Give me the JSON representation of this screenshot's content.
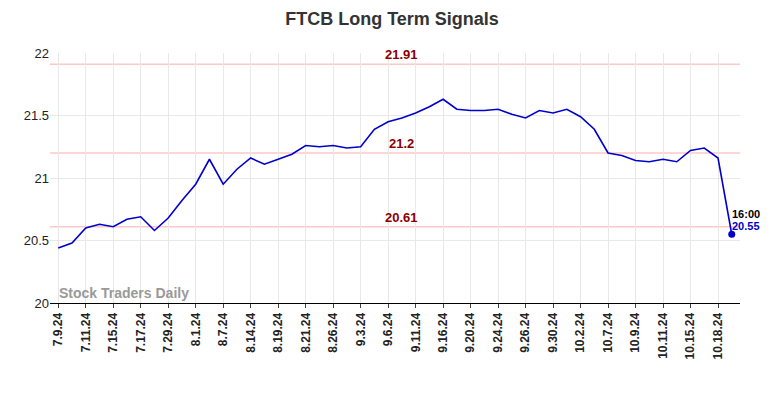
{
  "chart_data": {
    "type": "line",
    "title": "FTCB Long Term Signals",
    "categories": [
      "7.9.24",
      null,
      "7.11.24",
      null,
      "7.15.24",
      null,
      "7.17.24",
      null,
      "7.29.24",
      null,
      "8.1.24",
      null,
      "8.7.24",
      null,
      "8.14.24",
      null,
      "8.19.24",
      null,
      "8.21.24",
      null,
      "8.26.24",
      null,
      "9.3.24",
      null,
      "9.6.24",
      null,
      "9.11.24",
      null,
      "9.16.24",
      null,
      "9.20.24",
      null,
      "9.24.24",
      null,
      "9.26.24",
      null,
      "9.30.24",
      null,
      "10.2.24",
      null,
      "10.7.24",
      null,
      "10.9.24",
      null,
      "10.11.24",
      null,
      "10.15.24",
      null,
      "10.18.24",
      null
    ],
    "values": [
      20.44,
      20.48,
      20.6,
      20.63,
      20.61,
      20.67,
      20.69,
      20.58,
      20.68,
      20.82,
      20.95,
      21.15,
      20.95,
      21.07,
      21.16,
      21.11,
      21.15,
      21.19,
      21.26,
      21.25,
      21.26,
      21.24,
      21.25,
      21.39,
      21.45,
      21.48,
      21.52,
      21.57,
      21.63,
      21.55,
      21.54,
      21.54,
      21.55,
      21.51,
      21.48,
      21.54,
      21.52,
      21.55,
      21.49,
      21.39,
      21.2,
      21.18,
      21.14,
      21.13,
      21.15,
      21.13,
      21.22,
      21.24,
      21.16,
      20.55
    ],
    "color": "#0000cc",
    "ylim": [
      20,
      22
    ],
    "yticks": [
      20,
      20.5,
      21,
      21.5,
      22
    ],
    "grid": true,
    "levels": {
      "values": [
        21.91,
        21.2,
        20.61
      ],
      "color": "#ffc8c8",
      "label_color": "#8b0000"
    },
    "annotations": [
      "16:00",
      "20.55"
    ],
    "watermark": "Stock Traders Daily"
  }
}
